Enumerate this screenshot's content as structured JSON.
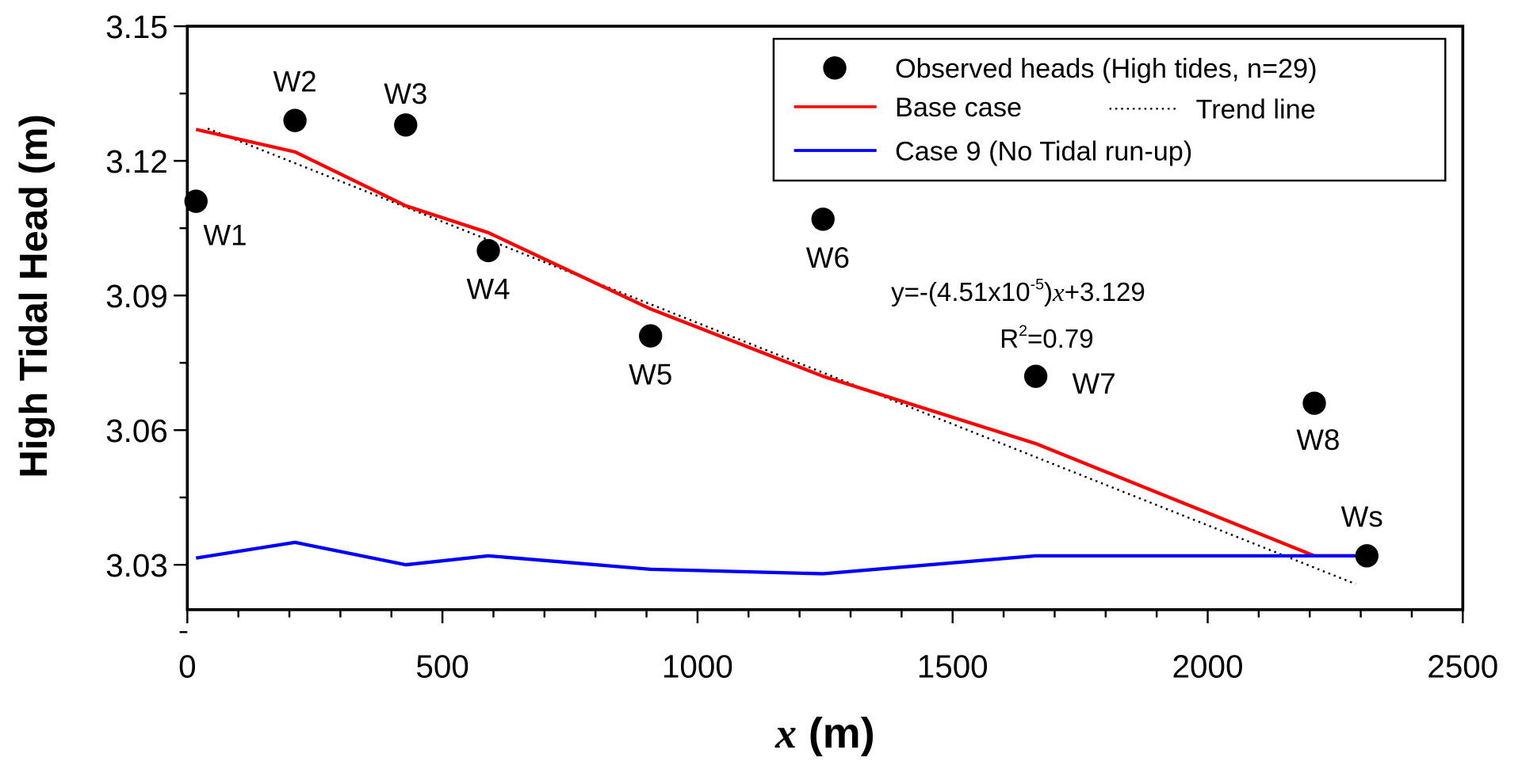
{
  "chart_data": {
    "type": "line",
    "xlabel_var": "x",
    "xlabel_unit": " (m)",
    "ylabel": "High Tidal Head (m)",
    "xlim": [
      0,
      2500
    ],
    "ylim": [
      3.02,
      3.15
    ],
    "xticks": [
      0,
      500,
      1000,
      1500,
      2000,
      2500
    ],
    "yticks": [
      "3.03",
      "3.06",
      "3.09",
      "3.12",
      "3.15"
    ],
    "grid": false,
    "legend_position": "top-right",
    "legend": {
      "observed": "Observed heads (High tides, n=29)",
      "base": "Base case",
      "trend": "Trend line",
      "case9": "Case 9 (No Tidal run-up)"
    },
    "colors": {
      "observed": "#000000",
      "base": "#ff0000",
      "case9": "#0000ff",
      "trend": "#000000"
    },
    "observed": {
      "labels": [
        "W1",
        "W2",
        "W3",
        "W4",
        "W5",
        "W6",
        "W7",
        "W8",
        "Ws"
      ],
      "x": [
        17,
        211,
        428,
        590,
        908,
        1246,
        1663,
        2209,
        2312
      ],
      "y": [
        3.111,
        3.129,
        3.128,
        3.1,
        3.081,
        3.107,
        3.072,
        3.066,
        3.032
      ]
    },
    "series": [
      {
        "name": "Base case",
        "x": [
          17,
          211,
          428,
          590,
          908,
          1246,
          1663,
          2209,
          2312
        ],
        "y": [
          3.127,
          3.122,
          3.11,
          3.104,
          3.087,
          3.072,
          3.057,
          3.032,
          3.032
        ]
      },
      {
        "name": "Case 9 (No Tidal run-up)",
        "x": [
          17,
          211,
          428,
          590,
          908,
          1246,
          1663,
          2209,
          2312
        ],
        "y": [
          3.0315,
          3.035,
          3.03,
          3.032,
          3.029,
          3.028,
          3.032,
          3.032,
          3.032
        ]
      }
    ],
    "trend": {
      "name": "Trend line",
      "slope": -4.51e-05,
      "intercept": 3.129,
      "x_range": [
        40,
        2290
      ]
    },
    "annotation": {
      "eq_prefix": "y=-(4.51x10",
      "eq_exp": "-5",
      "eq_mid": ")",
      "eq_var": "x",
      "eq_suffix": "+3.129",
      "r2_prefix": "R",
      "r2_exp": "2",
      "r2_suffix": "=0.79"
    }
  }
}
